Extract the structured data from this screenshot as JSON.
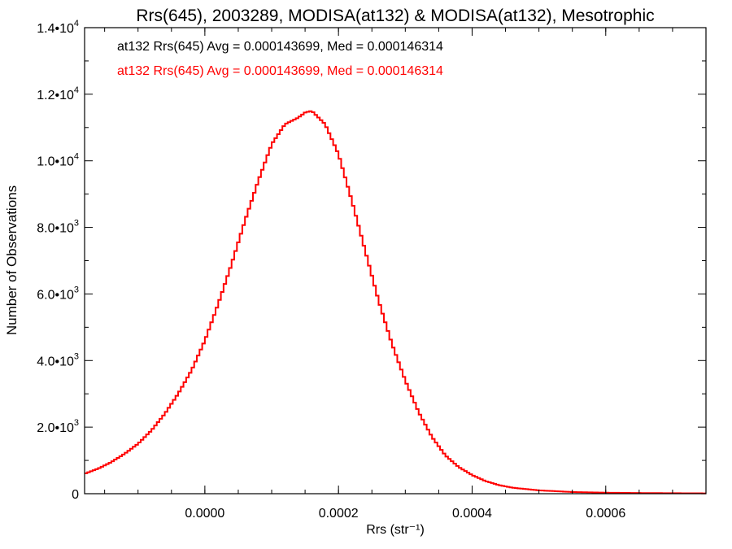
{
  "chart_data": {
    "type": "line",
    "step": true,
    "title": "Rrs(645), 2003289, MODISA(at132) & MODISA(at132), Mesotrophic",
    "xlabel": "Rrs (str⁻¹)",
    "ylabel": "Number of Observations",
    "xlim": [
      -0.00018,
      0.00075
    ],
    "ylim": [
      0,
      14000
    ],
    "grid": false,
    "x_ticks": [
      {
        "value": 0.0,
        "label": "0.0000"
      },
      {
        "value": 0.0002,
        "label": "0.0002"
      },
      {
        "value": 0.0004,
        "label": "0.0004"
      },
      {
        "value": 0.0006,
        "label": "0.0006"
      }
    ],
    "y_ticks": [
      {
        "value": 0,
        "mant": "0",
        "exp": ""
      },
      {
        "value": 2000,
        "mant": "2.0•10",
        "exp": "3"
      },
      {
        "value": 4000,
        "mant": "4.0•10",
        "exp": "3"
      },
      {
        "value": 6000,
        "mant": "6.0•10",
        "exp": "3"
      },
      {
        "value": 8000,
        "mant": "8.0•10",
        "exp": "3"
      },
      {
        "value": 10000,
        "mant": "1.0•10",
        "exp": "4"
      },
      {
        "value": 12000,
        "mant": "1.2•10",
        "exp": "4"
      },
      {
        "value": 14000,
        "mant": "1.4•10",
        "exp": "4"
      }
    ],
    "annotations": [
      {
        "text": "at132 Rrs(645) Avg = 0.000143699, Med = 0.000146314",
        "color": "#000000"
      },
      {
        "text": "at132 Rrs(645) Avg = 0.000143699, Med = 0.000146314",
        "color": "#ff0000"
      }
    ],
    "series": [
      {
        "color": "#ff0000",
        "x": [
          -0.00018,
          -0.00016,
          -0.00014,
          -0.00012,
          -0.0001,
          -8e-05,
          -6e-05,
          -4e-05,
          -2e-05,
          0.0,
          2e-05,
          4e-05,
          6e-05,
          8e-05,
          0.0001,
          0.00012,
          0.00014,
          0.00015,
          0.00016,
          0.00017,
          0.00018,
          0.0002,
          0.00022,
          0.00024,
          0.00026,
          0.00028,
          0.0003,
          0.00032,
          0.00034,
          0.00036,
          0.00038,
          0.0004,
          0.00042,
          0.00044,
          0.00046,
          0.0005,
          0.00055,
          0.0006,
          0.00065,
          0.0007,
          0.00075
        ],
        "y": [
          600,
          750,
          950,
          1200,
          1500,
          1900,
          2400,
          3000,
          3700,
          4600,
          5700,
          6900,
          8200,
          9400,
          10500,
          11100,
          11300,
          11450,
          11500,
          11300,
          11100,
          10200,
          8800,
          7300,
          5800,
          4500,
          3400,
          2450,
          1700,
          1150,
          800,
          560,
          380,
          260,
          180,
          100,
          50,
          30,
          20,
          15,
          10
        ]
      }
    ]
  }
}
